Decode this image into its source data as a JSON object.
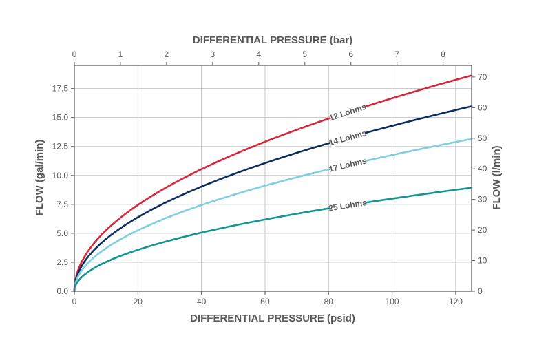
{
  "chart_data": {
    "type": "line",
    "x_axis_bottom": {
      "label": "DIFFERENTIAL PRESSURE (psid)",
      "range": [
        0,
        125
      ],
      "ticks": [
        0,
        20,
        40,
        60,
        80,
        100,
        120
      ]
    },
    "x_axis_top": {
      "label": "DIFFERENTIAL PRESSURE (bar)",
      "range": [
        0,
        8.618
      ],
      "ticks": [
        0,
        1,
        2,
        3,
        4,
        5,
        6,
        7,
        8
      ]
    },
    "y_axis_left": {
      "label": "FLOW (gal/min)",
      "range": [
        0,
        19.5
      ],
      "ticks": [
        "0.0",
        "2.5",
        "5.0",
        "7.5",
        "10.0",
        "12.5",
        "15.0",
        "17.5"
      ]
    },
    "y_axis_right": {
      "label": "FLOW (l/min)",
      "range": [
        0,
        73.8
      ],
      "ticks": [
        "0",
        "10",
        "20",
        "30",
        "40",
        "50",
        "60",
        "70"
      ]
    },
    "grid": true,
    "series": [
      {
        "name": "12 Lohms",
        "color": "#d9263a",
        "x": [
          0,
          1,
          5,
          10,
          20,
          30,
          40,
          50,
          60,
          70,
          80,
          90,
          100,
          110,
          120,
          125
        ],
        "y": [
          0,
          1.67,
          3.73,
          5.27,
          7.45,
          9.13,
          10.54,
          11.78,
          12.91,
          13.94,
          14.9,
          15.81,
          16.67,
          17.48,
          18.26,
          18.63
        ]
      },
      {
        "name": "14 Lohms",
        "color": "#0d2d5e",
        "x": [
          0,
          1,
          5,
          10,
          20,
          30,
          40,
          50,
          60,
          70,
          80,
          90,
          100,
          110,
          120,
          125
        ],
        "y": [
          0,
          1.43,
          3.19,
          4.52,
          6.39,
          7.82,
          9.03,
          10.1,
          11.07,
          11.95,
          12.78,
          13.55,
          14.29,
          14.98,
          15.65,
          15.97
        ]
      },
      {
        "name": "17 Lohms",
        "color": "#7fcfe0",
        "x": [
          0,
          1,
          5,
          10,
          20,
          30,
          40,
          50,
          60,
          70,
          80,
          90,
          100,
          110,
          120,
          125
        ],
        "y": [
          0,
          1.18,
          2.63,
          3.72,
          5.26,
          6.44,
          7.44,
          8.32,
          9.11,
          9.84,
          10.52,
          11.16,
          11.76,
          12.34,
          12.89,
          13.15
        ]
      },
      {
        "name": "25 Lohms",
        "color": "#129593",
        "x": [
          0,
          1,
          5,
          10,
          20,
          30,
          40,
          50,
          60,
          70,
          80,
          90,
          100,
          110,
          120,
          125
        ],
        "y": [
          0,
          0.8,
          1.79,
          2.53,
          3.58,
          4.38,
          5.06,
          5.66,
          6.2,
          6.69,
          7.16,
          7.59,
          8.0,
          8.39,
          8.76,
          8.94
        ]
      }
    ],
    "series_label_position_x": 86
  }
}
